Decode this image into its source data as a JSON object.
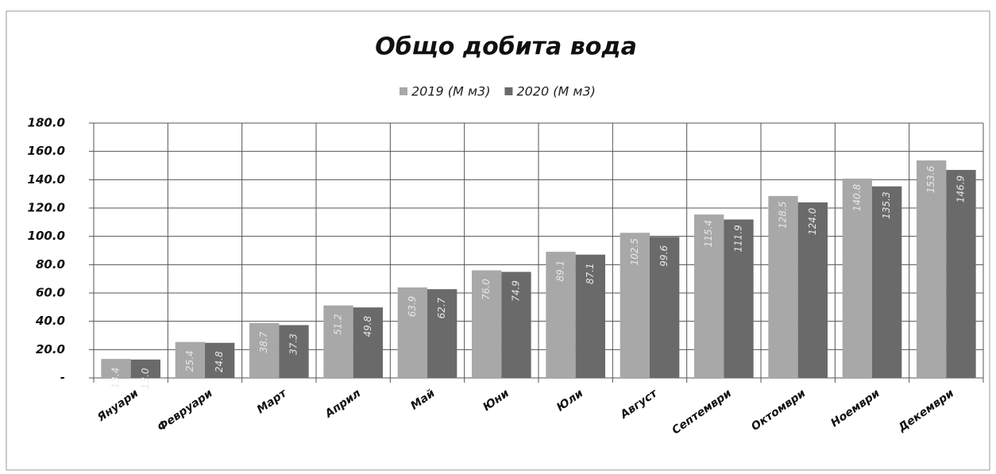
{
  "chart_data": {
    "type": "bar",
    "title": "Общо добита вода",
    "categories": [
      "Януари",
      "Февруари",
      "Март",
      "Април",
      "Май",
      "Юни",
      "Юли",
      "Август",
      "Септември",
      "Октомври",
      "Ноември",
      "Декември"
    ],
    "series": [
      {
        "name": "2019 (М м3)",
        "color": "#a8a8a8",
        "values": [
          13.4,
          25.4,
          38.7,
          51.2,
          63.9,
          76.0,
          89.1,
          102.5,
          115.4,
          128.5,
          140.8,
          153.6
        ],
        "value_labels": [
          "13.4",
          "25.4",
          "38.7",
          "51.2",
          "63.9",
          "76.0",
          "89.1",
          "102.5",
          "115.4",
          "128.5",
          "140.8",
          "153.6"
        ]
      },
      {
        "name": "2020 (М м3)",
        "color": "#6a6a6a",
        "values": [
          13.0,
          24.8,
          37.3,
          49.8,
          62.7,
          74.9,
          87.1,
          99.6,
          111.9,
          124.0,
          135.3,
          146.9
        ],
        "value_labels": [
          "13.0",
          "24.8",
          "37.3",
          "49.8",
          "62.7",
          "74.9",
          "87.1",
          "99.6",
          "111.9",
          "124.0",
          "135.3",
          "146.9"
        ]
      }
    ],
    "ylim": [
      0,
      180
    ],
    "yticks": [
      {
        "value": 0,
        "label": "-"
      },
      {
        "value": 20,
        "label": "20.0"
      },
      {
        "value": 40,
        "label": "40.0"
      },
      {
        "value": 60,
        "label": "60.0"
      },
      {
        "value": 80,
        "label": "80.0"
      },
      {
        "value": 100,
        "label": "100.0"
      },
      {
        "value": 120,
        "label": "120.0"
      },
      {
        "value": 140,
        "label": "140.0"
      },
      {
        "value": 160,
        "label": "160.0"
      },
      {
        "value": 180,
        "label": "180.0"
      }
    ],
    "grid": true
  }
}
